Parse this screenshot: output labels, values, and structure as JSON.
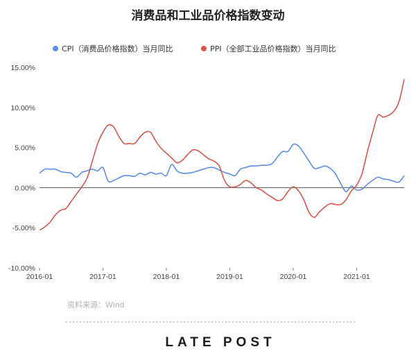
{
  "chart_data": {
    "type": "line",
    "title": "消费品和工业品价格指数变动",
    "xlabel": "",
    "ylabel": "",
    "x_ticks": [
      "2016-01",
      "2017-01",
      "2018-01",
      "2019-01",
      "2020-01",
      "2021-01"
    ],
    "y_ticks": [
      "15.00%",
      "10.00%",
      "5.00%",
      "0.00%",
      "-5.00%",
      "-10.00%"
    ],
    "ylim": [
      -10,
      15
    ],
    "grid": false,
    "legend_position": "top",
    "x": [
      "2016-01",
      "2016-02",
      "2016-03",
      "2016-04",
      "2016-05",
      "2016-06",
      "2016-07",
      "2016-08",
      "2016-09",
      "2016-10",
      "2016-11",
      "2016-12",
      "2017-01",
      "2017-02",
      "2017-03",
      "2017-04",
      "2017-05",
      "2017-06",
      "2017-07",
      "2017-08",
      "2017-09",
      "2017-10",
      "2017-11",
      "2017-12",
      "2018-01",
      "2018-02",
      "2018-03",
      "2018-04",
      "2018-05",
      "2018-06",
      "2018-07",
      "2018-08",
      "2018-09",
      "2018-10",
      "2018-11",
      "2018-12",
      "2019-01",
      "2019-02",
      "2019-03",
      "2019-04",
      "2019-05",
      "2019-06",
      "2019-07",
      "2019-08",
      "2019-09",
      "2019-10",
      "2019-11",
      "2019-12",
      "2020-01",
      "2020-02",
      "2020-03",
      "2020-04",
      "2020-05",
      "2020-06",
      "2020-07",
      "2020-08",
      "2020-09",
      "2020-10",
      "2020-11",
      "2020-12",
      "2021-01",
      "2021-02",
      "2021-03",
      "2021-04",
      "2021-05",
      "2021-06",
      "2021-07",
      "2021-08",
      "2021-09",
      "2021-10"
    ],
    "series": [
      {
        "name": "CPI（消费品价格指数）当月同比",
        "color": "#5b8def",
        "values": [
          1.8,
          2.3,
          2.3,
          2.3,
          2.0,
          1.9,
          1.8,
          1.3,
          1.9,
          2.1,
          2.3,
          2.1,
          2.5,
          0.8,
          0.9,
          1.2,
          1.5,
          1.5,
          1.4,
          1.8,
          1.6,
          1.9,
          1.7,
          1.8,
          1.5,
          2.9,
          2.1,
          1.8,
          1.8,
          1.9,
          2.1,
          2.3,
          2.5,
          2.5,
          2.2,
          1.9,
          1.7,
          1.5,
          2.3,
          2.5,
          2.7,
          2.7,
          2.8,
          2.8,
          3.0,
          3.8,
          4.5,
          4.5,
          5.4,
          5.2,
          4.3,
          3.3,
          2.4,
          2.5,
          2.7,
          2.4,
          1.7,
          0.5,
          -0.5,
          0.2,
          -0.3,
          -0.2,
          0.4,
          0.9,
          1.3,
          1.1,
          1.0,
          0.8,
          0.7,
          1.5
        ]
      },
      {
        "name": "PPI（全部工业品价格指数）当月同比",
        "color": "#d9554a",
        "values": [
          -5.3,
          -4.9,
          -4.3,
          -3.4,
          -2.8,
          -2.6,
          -1.7,
          -0.8,
          0.1,
          1.2,
          3.3,
          5.5,
          6.9,
          7.8,
          7.6,
          6.4,
          5.5,
          5.5,
          5.5,
          6.3,
          6.9,
          6.9,
          5.8,
          4.9,
          4.3,
          3.7,
          3.1,
          3.4,
          4.1,
          4.7,
          4.6,
          4.1,
          3.6,
          3.3,
          2.7,
          0.9,
          0.1,
          0.1,
          0.4,
          0.9,
          0.6,
          0.0,
          -0.3,
          -0.8,
          -1.2,
          -1.6,
          -1.4,
          -0.5,
          0.1,
          -0.4,
          -1.5,
          -3.1,
          -3.7,
          -3.0,
          -2.4,
          -2.0,
          -2.1,
          -2.1,
          -1.5,
          -0.4,
          0.3,
          1.7,
          4.4,
          6.8,
          9.0,
          8.8,
          9.0,
          9.5,
          10.7,
          13.5
        ]
      }
    ]
  },
  "source_text": "资料来源：Wind",
  "logo_text": "LATE POST"
}
